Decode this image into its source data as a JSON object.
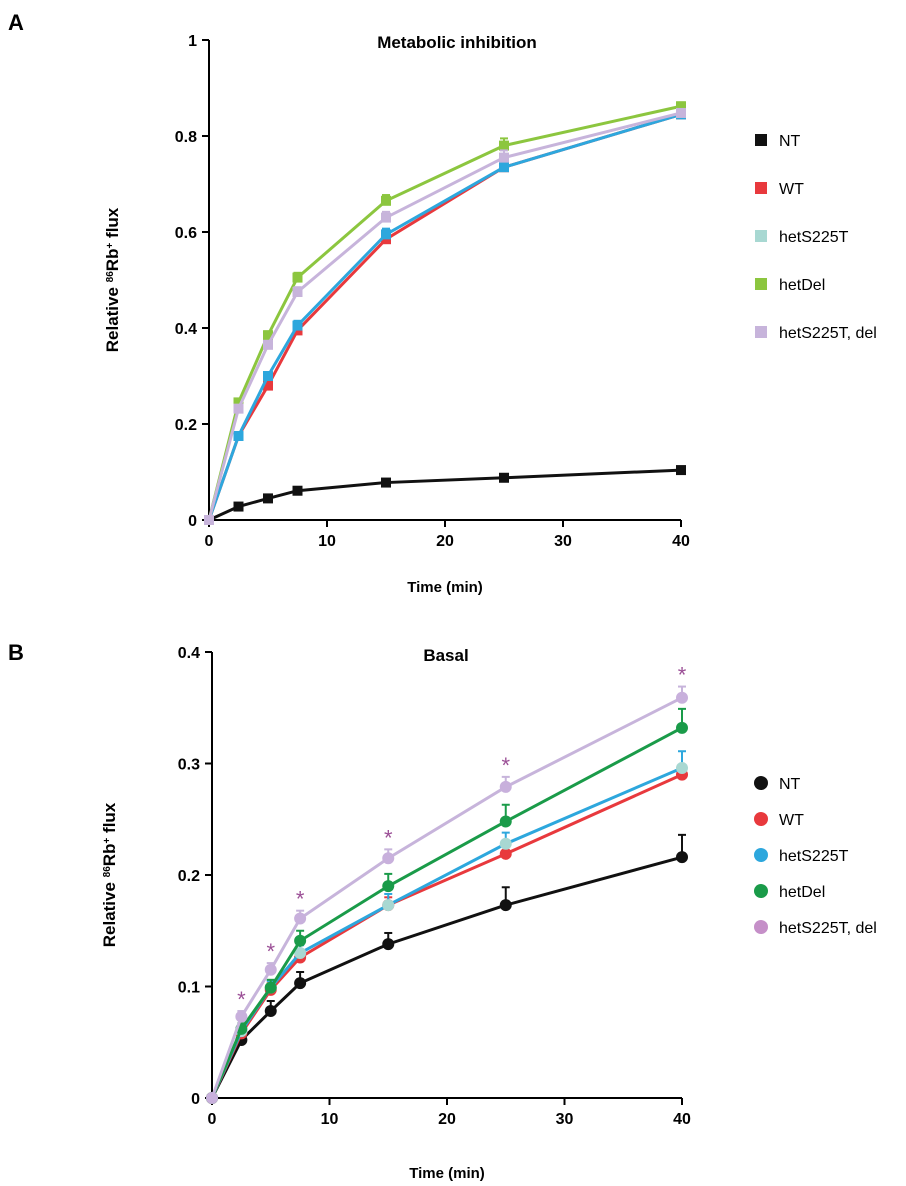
{
  "panels": [
    {
      "letter": "A",
      "chart_data": {
        "type": "line",
        "title": "Metabolic inhibition",
        "xlabel": "Time (min)",
        "ylabel_pre": "Relative ",
        "ylabel_sup": "86",
        "ylabel_post": "Rb",
        "ylabel_sup2": "+",
        "ylabel_end": " flux",
        "xlim": [
          0,
          40
        ],
        "ylim": [
          0,
          1
        ],
        "xticks": [
          0,
          10,
          20,
          30,
          40
        ],
        "yticks": [
          0,
          0.2,
          0.4,
          0.6,
          0.8,
          1
        ],
        "ytick_labels": [
          "0",
          "0.2",
          "0.4",
          "0.6",
          "0.8",
          "1"
        ],
        "marker": "square",
        "legend_position": "right",
        "x": [
          0,
          2.5,
          5,
          7.5,
          15,
          25,
          40
        ],
        "series": [
          {
            "name": "NT",
            "color": "#111111",
            "values": [
              0,
              0.028,
              0.045,
              0.061,
              0.078,
              0.088,
              0.104
            ],
            "errors": [
              0,
              0.004,
              0.004,
              0.004,
              0.004,
              0.005,
              0.006
            ]
          },
          {
            "name": "WT",
            "color": "#e8393d",
            "values": [
              0,
              0.175,
              0.28,
              0.395,
              0.585,
              0.735,
              0.845
            ],
            "errors": [
              0,
              0.006,
              0.008,
              0.01,
              0.012,
              0.015,
              0.01
            ]
          },
          {
            "name": "hetS225T",
            "color": "#2da7dd",
            "values": [
              0,
              0.175,
              0.3,
              0.405,
              0.595,
              0.735,
              0.845
            ],
            "errors": [
              0,
              0.006,
              0.008,
              0.01,
              0.012,
              0.018,
              0.01
            ]
          },
          {
            "name": "hetDel",
            "color": "#8cc63f",
            "values": [
              0,
              0.245,
              0.385,
              0.505,
              0.665,
              0.78,
              0.862
            ],
            "errors": [
              0,
              0.006,
              0.008,
              0.01,
              0.012,
              0.015,
              0.008
            ]
          },
          {
            "name": "hetS225T, del",
            "color": "#c7b4db",
            "values": [
              0,
              0.232,
              0.365,
              0.475,
              0.63,
              0.755,
              0.848
            ],
            "errors": [
              0,
              0.006,
              0.008,
              0.01,
              0.012,
              0.015,
              0.008
            ]
          }
        ],
        "legend_marker_colors": [
          "#111111",
          "#e8393d",
          "#a8d8d2",
          "#8cc63f",
          "#c7b4db"
        ]
      }
    },
    {
      "letter": "B",
      "chart_data": {
        "type": "line",
        "title": "Basal",
        "xlabel": "Time (min)",
        "ylabel_pre": "Relative ",
        "ylabel_sup": "86",
        "ylabel_post": "Rb",
        "ylabel_sup2": "+",
        "ylabel_end": " flux",
        "xlim": [
          0,
          40
        ],
        "ylim": [
          0,
          0.4
        ],
        "xticks": [
          0,
          10,
          20,
          30,
          40
        ],
        "yticks": [
          0,
          0.1,
          0.2,
          0.3,
          0.4
        ],
        "ytick_labels": [
          "0",
          "0.1",
          "0.2",
          "0.3",
          "0.4"
        ],
        "marker": "circle",
        "legend_position": "right",
        "x": [
          0,
          2.5,
          5,
          7.5,
          15,
          25,
          40
        ],
        "series": [
          {
            "name": "NT",
            "color": "#111111",
            "values": [
              0,
              0.052,
              0.078,
              0.103,
              0.138,
              0.173,
              0.216
            ],
            "errors": [
              0,
              0.007,
              0.009,
              0.01,
              0.01,
              0.016,
              0.02
            ]
          },
          {
            "name": "WT",
            "color": "#e8393d",
            "values": [
              0,
              0.058,
              0.097,
              0.126,
              0.173,
              0.219,
              0.29
            ],
            "errors": [
              0,
              0.005,
              0.006,
              0.007,
              0.007,
              0.008,
              0.008
            ]
          },
          {
            "name": "hetS225T",
            "color": "#2da7dd",
            "values": [
              0,
              0.06,
              0.099,
              0.13,
              0.173,
              0.228,
              0.296
            ],
            "errors": [
              0,
              0.005,
              0.006,
              0.007,
              0.01,
              0.01,
              0.015
            ]
          },
          {
            "name": "hetDel",
            "color": "#1a9b49",
            "values": [
              0,
              0.062,
              0.099,
              0.141,
              0.19,
              0.248,
              0.332
            ],
            "errors": [
              0,
              0.005,
              0.007,
              0.009,
              0.011,
              0.015,
              0.017
            ]
          },
          {
            "name": "hetS225T, del",
            "color": "#c7b4db",
            "values": [
              0,
              0.073,
              0.115,
              0.161,
              0.215,
              0.279,
              0.359
            ],
            "errors": [
              0,
              0.005,
              0.006,
              0.007,
              0.008,
              0.009,
              0.01
            ]
          }
        ],
        "legend_marker_colors": [
          "#111111",
          "#e8393d",
          "#2da7dd",
          "#1a9b49",
          "#c58fc8"
        ],
        "marker_colors": [
          "#111111",
          "#e8393d",
          "#a8d8d2",
          "#1a9b49",
          "#c8b0dc"
        ],
        "significance_marker": "*",
        "significant_x": [
          2.5,
          5,
          7.5,
          15,
          25,
          40
        ]
      }
    }
  ]
}
